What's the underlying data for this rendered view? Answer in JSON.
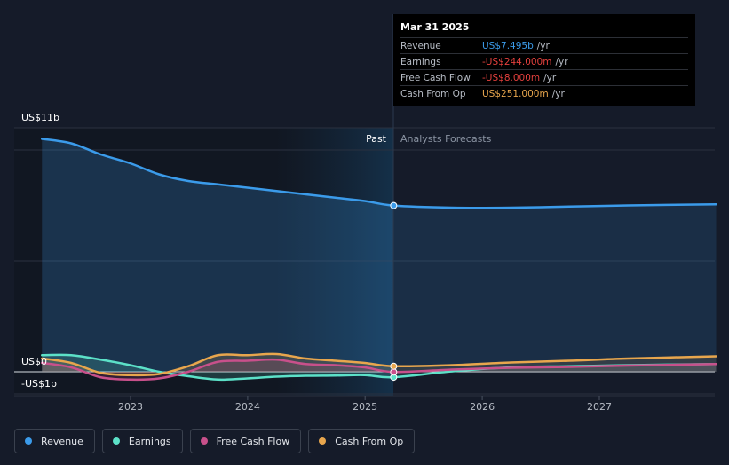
{
  "chart_data": {
    "type": "area",
    "y_labels": {
      "top": "US$11b",
      "zero": "US$0",
      "bottom": "-US$1b"
    },
    "ylim": [
      -1,
      11
    ],
    "x_ticks": [
      "2023",
      "2024",
      "2025",
      "2026",
      "2027"
    ],
    "regions": {
      "past": "Past",
      "forecast": "Analysts Forecasts"
    },
    "highlight_date": "Mar 31 2025",
    "series": [
      {
        "name": "Revenue",
        "color": "#3b9bea",
        "points": [
          [
            "2022-03-31",
            10.5
          ],
          [
            "2022-06-30",
            10.3
          ],
          [
            "2022-09-30",
            9.8
          ],
          [
            "2022-12-31",
            9.4
          ],
          [
            "2023-03-31",
            8.9
          ],
          [
            "2023-06-30",
            8.6
          ],
          [
            "2023-09-30",
            8.45
          ],
          [
            "2023-12-31",
            8.3
          ],
          [
            "2024-03-31",
            8.15
          ],
          [
            "2024-06-30",
            8.0
          ],
          [
            "2024-09-30",
            7.85
          ],
          [
            "2024-12-31",
            7.7
          ],
          [
            "2025-03-31",
            7.495
          ],
          [
            "2025-09-30",
            7.4
          ],
          [
            "2026-03-31",
            7.4
          ],
          [
            "2026-09-30",
            7.45
          ],
          [
            "2027-03-31",
            7.5
          ],
          [
            "2027-12-31",
            7.55
          ]
        ]
      },
      {
        "name": "Earnings",
        "color": "#5ce1c8",
        "points": [
          [
            "2022-03-31",
            0.75
          ],
          [
            "2022-06-30",
            0.75
          ],
          [
            "2022-09-30",
            0.55
          ],
          [
            "2022-12-31",
            0.3
          ],
          [
            "2023-03-31",
            0.0
          ],
          [
            "2023-06-30",
            -0.2
          ],
          [
            "2023-09-30",
            -0.35
          ],
          [
            "2023-12-31",
            -0.3
          ],
          [
            "2024-03-31",
            -0.22
          ],
          [
            "2024-06-30",
            -0.18
          ],
          [
            "2024-09-30",
            -0.17
          ],
          [
            "2024-12-31",
            -0.15
          ],
          [
            "2025-03-31",
            -0.244
          ],
          [
            "2025-09-30",
            0.02
          ],
          [
            "2026-03-31",
            0.2
          ],
          [
            "2026-09-30",
            0.25
          ],
          [
            "2027-03-31",
            0.3
          ],
          [
            "2027-12-31",
            0.35
          ]
        ]
      },
      {
        "name": "Free Cash Flow",
        "color": "#c8508b",
        "points": [
          [
            "2022-03-31",
            0.4
          ],
          [
            "2022-06-30",
            0.2
          ],
          [
            "2022-09-30",
            -0.25
          ],
          [
            "2022-12-31",
            -0.35
          ],
          [
            "2023-03-31",
            -0.3
          ],
          [
            "2023-06-30",
            0.0
          ],
          [
            "2023-09-30",
            0.45
          ],
          [
            "2023-12-31",
            0.5
          ],
          [
            "2024-03-31",
            0.55
          ],
          [
            "2024-06-30",
            0.35
          ],
          [
            "2024-09-30",
            0.3
          ],
          [
            "2024-12-31",
            0.2
          ],
          [
            "2025-03-31",
            -0.008
          ],
          [
            "2025-09-30",
            0.1
          ],
          [
            "2026-03-31",
            0.18
          ],
          [
            "2026-09-30",
            0.22
          ],
          [
            "2027-03-31",
            0.28
          ],
          [
            "2027-12-31",
            0.35
          ]
        ]
      },
      {
        "name": "Cash From Op",
        "color": "#e8a64d",
        "points": [
          [
            "2022-03-31",
            0.6
          ],
          [
            "2022-06-30",
            0.4
          ],
          [
            "2022-09-30",
            -0.05
          ],
          [
            "2022-12-31",
            -0.15
          ],
          [
            "2023-03-31",
            -0.1
          ],
          [
            "2023-06-30",
            0.25
          ],
          [
            "2023-09-30",
            0.75
          ],
          [
            "2023-12-31",
            0.75
          ],
          [
            "2024-03-31",
            0.8
          ],
          [
            "2024-06-30",
            0.6
          ],
          [
            "2024-09-30",
            0.5
          ],
          [
            "2024-12-31",
            0.4
          ],
          [
            "2025-03-31",
            0.251
          ],
          [
            "2025-09-30",
            0.3
          ],
          [
            "2026-03-31",
            0.42
          ],
          [
            "2026-09-30",
            0.5
          ],
          [
            "2027-03-31",
            0.6
          ],
          [
            "2027-12-31",
            0.7
          ]
        ]
      }
    ]
  },
  "tooltip": {
    "date": "Mar 31 2025",
    "rows": [
      {
        "name": "Revenue",
        "value": "US$7.495b",
        "unit": "/yr",
        "color": "#3b9bea"
      },
      {
        "name": "Earnings",
        "value": "-US$244.000m",
        "unit": "/yr",
        "color": "#e4403d"
      },
      {
        "name": "Free Cash Flow",
        "value": "-US$8.000m",
        "unit": "/yr",
        "color": "#e4403d"
      },
      {
        "name": "Cash From Op",
        "value": "US$251.000m",
        "unit": "/yr",
        "color": "#e8a64d"
      }
    ]
  },
  "legend": [
    {
      "label": "Revenue",
      "color": "#3b9bea"
    },
    {
      "label": "Earnings",
      "color": "#5ce1c8"
    },
    {
      "label": "Free Cash Flow",
      "color": "#c8508b"
    },
    {
      "label": "Cash From Op",
      "color": "#e8a64d"
    }
  ]
}
